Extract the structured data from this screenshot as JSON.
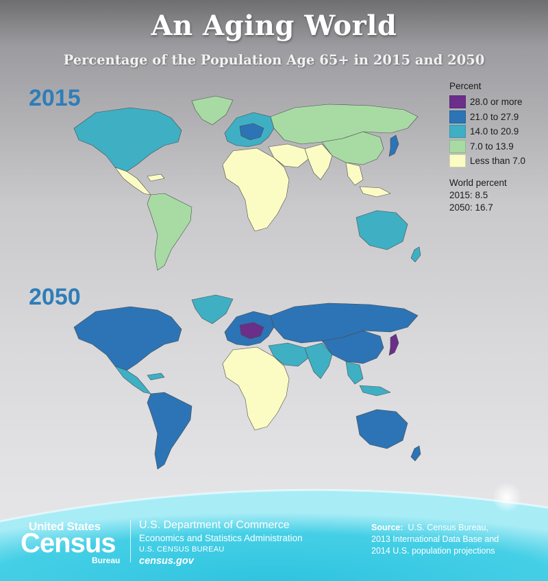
{
  "header": {
    "title": "An Aging World",
    "subtitle": "Percentage of the Population Age 65+ in 2015 and 2050"
  },
  "maps": [
    {
      "year": "2015",
      "regions": {
        "north_america": "14.0 to 20.9",
        "greenland": "7.0 to 13.9",
        "central_america_caribbean": "Less than 7.0",
        "south_america": "7.0 to 13.9",
        "europe": "14.0 to 20.9",
        "central_europe": "21.0 to 27.9",
        "russia_central_asia": "7.0 to 13.9",
        "china": "7.0 to 13.9",
        "japan": "21.0 to 27.9",
        "middle_east": "Less than 7.0",
        "africa": "Less than 7.0",
        "south_asia": "Less than 7.0",
        "southeast_asia": "Less than 7.0",
        "australia": "14.0 to 20.9",
        "new_zealand": "14.0 to 20.9"
      }
    },
    {
      "year": "2050",
      "regions": {
        "north_america": "21.0 to 27.9",
        "greenland": "14.0 to 20.9",
        "central_america_caribbean": "14.0 to 20.9",
        "south_america": "21.0 to 27.9",
        "europe": "21.0 to 27.9",
        "central_europe": "28.0 or more",
        "russia_central_asia": "21.0 to 27.9",
        "china": "21.0 to 27.9",
        "japan": "28.0 or more",
        "middle_east": "14.0 to 20.9",
        "africa": "Less than 7.0",
        "south_asia": "14.0 to 20.9",
        "southeast_asia": "14.0 to 20.9",
        "australia": "21.0 to 27.9",
        "new_zealand": "21.0 to 27.9"
      }
    }
  ],
  "legend": {
    "title": "Percent",
    "items": [
      {
        "label": "28.0 or more",
        "color": "#6b2f8a"
      },
      {
        "label": "21.0 to 27.9",
        "color": "#2c74b5"
      },
      {
        "label": "14.0 to 20.9",
        "color": "#3fafc4"
      },
      {
        "label": "7.0 to 13.9",
        "color": "#a8dba4"
      },
      {
        "label": "Less than 7.0",
        "color": "#fbfbc4"
      }
    ],
    "world_title": "World percent",
    "world_2015": "2015: 8.5",
    "world_2050": "2050: 16.7"
  },
  "footer": {
    "logo_us": "United States",
    "logo_census": "Census",
    "logo_bureau": "Bureau",
    "dept_line1": "U.S. Department of Commerce",
    "dept_line2": "Economics and Statistics Administration",
    "dept_line3": "U.S. CENSUS BUREAU",
    "dept_line4": "census.gov",
    "source_label": "Source:",
    "source_line1": "U.S. Census Bureau,",
    "source_line2": "2013 International Data Base and",
    "source_line3": "2014 U.S. population projections"
  }
}
